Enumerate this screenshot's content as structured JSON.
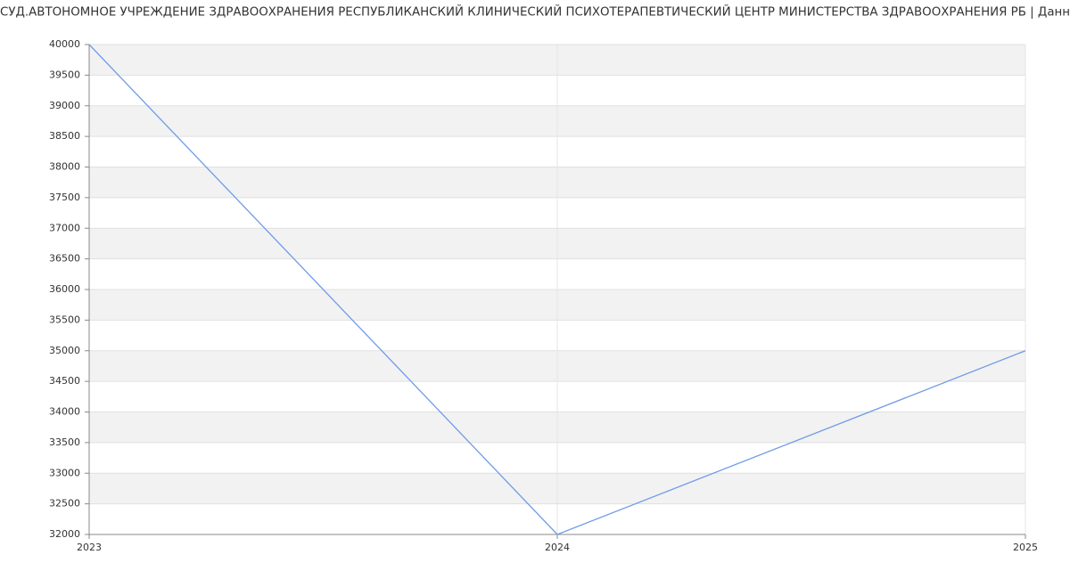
{
  "chart_data": {
    "type": "line",
    "title": "СУД.АВТОНОМНОЕ УЧРЕЖДЕНИЕ ЗДРАВООХРАНЕНИЯ РЕСПУБЛИКАНСКИЙ КЛИНИЧЕСКИЙ ПСИХОТЕРАПЕВТИЧЕСКИЙ ЦЕНТР МИНИСТЕРСТВА ЗДРАВООХРАНЕНИЯ РБ | Данн",
    "x": [
      2023,
      2024,
      2025
    ],
    "series": [
      {
        "color": "#6f9be8",
        "values": [
          40000,
          32000,
          35000
        ]
      }
    ],
    "xlim": [
      2023,
      2025
    ],
    "xticks": [
      2023,
      2024,
      2025
    ],
    "ylim": [
      32000,
      40000
    ],
    "yticks": [
      32000,
      32500,
      33000,
      33500,
      34000,
      34500,
      35000,
      35500,
      36000,
      36500,
      37000,
      37500,
      38000,
      38500,
      39000,
      39500,
      40000
    ],
    "grid": true
  }
}
